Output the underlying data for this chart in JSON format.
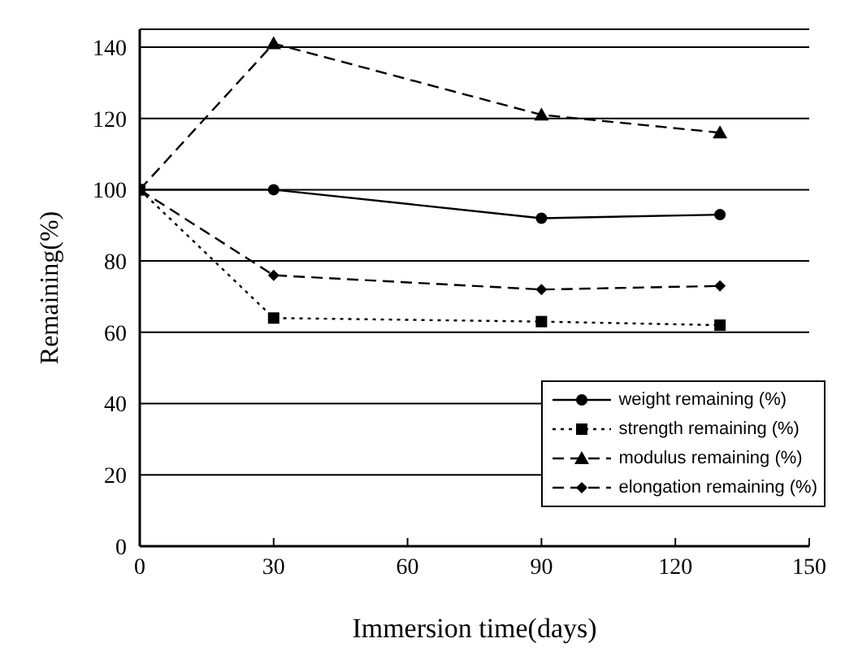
{
  "chart_data": {
    "type": "line",
    "xlabel": "Immersion time(days)",
    "ylabel": "Remaining(%)",
    "x": [
      0,
      30,
      90,
      130
    ],
    "series": [
      {
        "name": "weight remaining (%)",
        "color": "#000000",
        "values": [
          100,
          100,
          92,
          93
        ],
        "marker": "circle",
        "line_style": "solid"
      },
      {
        "name": "strength remaining (%)",
        "color": "#000000",
        "values": [
          100,
          64,
          63,
          62
        ],
        "marker": "square",
        "line_style": "dotted"
      },
      {
        "name": "modulus remaining (%)",
        "color": "#000000",
        "values": [
          100,
          141,
          121,
          116
        ],
        "marker": "triangle",
        "line_style": "dashed"
      },
      {
        "name": "elongation remaining (%)",
        "color": "#000000",
        "values": [
          100,
          76,
          72,
          73
        ],
        "marker": "diamond",
        "line_style": "dashed"
      }
    ],
    "xlim": [
      0,
      150
    ],
    "xticks": [
      0,
      30,
      60,
      90,
      120,
      150
    ],
    "ylim": [
      0,
      145
    ],
    "yticks": [
      0,
      20,
      40,
      60,
      80,
      100,
      120,
      140
    ],
    "grid": "y",
    "legend": "right"
  }
}
